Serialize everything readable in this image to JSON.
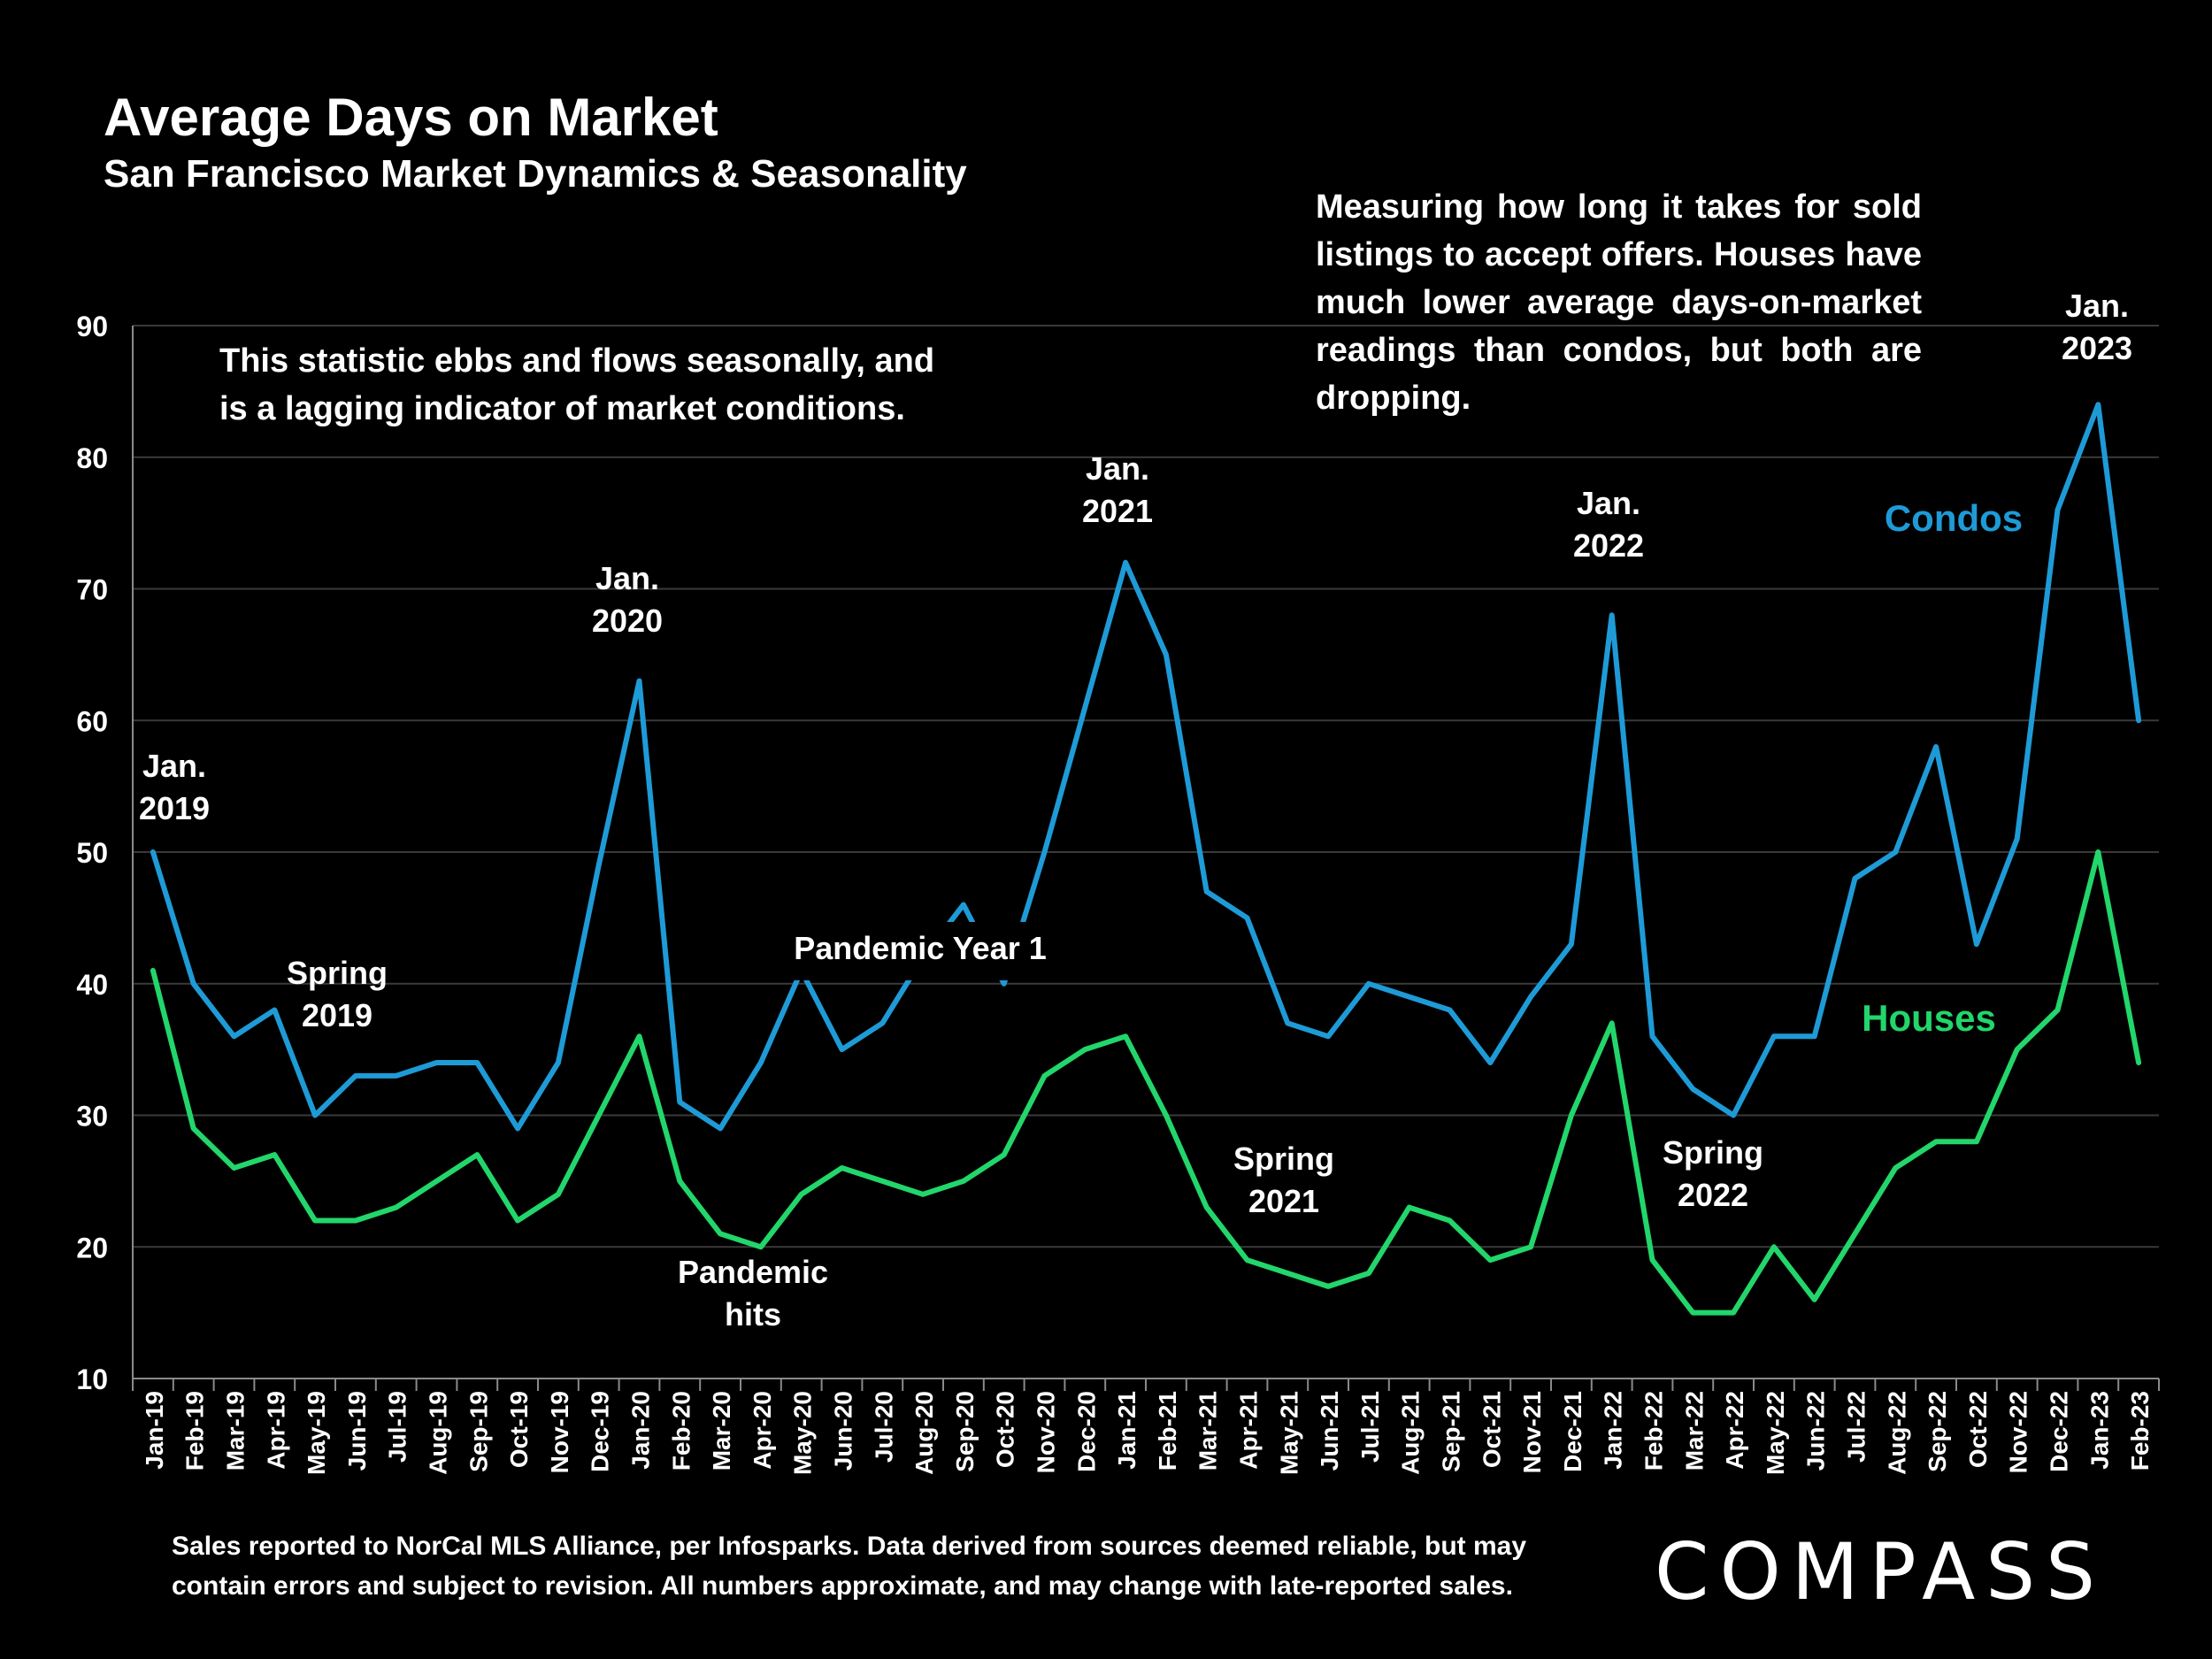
{
  "header": {
    "title": "Average Days on Market",
    "subtitle": "San Francisco Market Dynamics & Seasonality"
  },
  "notes": {
    "left": "This statistic ebbs and flows seasonally, and is a lagging indicator of market conditions.",
    "right": "Measuring how long it takes for sold listings to accept offers. Houses have much lower average days-on-market readings than condos, but both are dropping."
  },
  "footer": {
    "source": "Sales reported to NorCal MLS Alliance, per Infosparks. Data derived from sources deemed reliable, but may contain errors and subject to revision. All numbers approximate, and may change with late-reported sales.",
    "logo": "COMPASS"
  },
  "colors": {
    "background": "#000000",
    "condos": "#1E9BD7",
    "houses": "#22D66B",
    "grid": "#3a3a3a",
    "text": "#FFFFFF"
  },
  "chart_data": {
    "type": "line",
    "ylim": [
      10,
      90
    ],
    "yticks": [
      10,
      20,
      30,
      40,
      50,
      60,
      70,
      80,
      90
    ],
    "grid": true,
    "categories": [
      "Jan-19",
      "Feb-19",
      "Mar-19",
      "Apr-19",
      "May-19",
      "Jun-19",
      "Jul-19",
      "Aug-19",
      "Sep-19",
      "Oct-19",
      "Nov-19",
      "Dec-19",
      "Jan-20",
      "Feb-20",
      "Mar-20",
      "Apr-20",
      "May-20",
      "Jun-20",
      "Jul-20",
      "Aug-20",
      "Sep-20",
      "Oct-20",
      "Nov-20",
      "Dec-20",
      "Jan-21",
      "Feb-21",
      "Mar-21",
      "Apr-21",
      "May-21",
      "Jun-21",
      "Jul-21",
      "Aug-21",
      "Sep-21",
      "Oct-21",
      "Nov-21",
      "Dec-21",
      "Jan-22",
      "Feb-22",
      "Mar-22",
      "Apr-22",
      "May-22",
      "Jun-22",
      "Jul-22",
      "Aug-22",
      "Sep-22",
      "Oct-22",
      "Nov-22",
      "Dec-22",
      "Jan-23",
      "Feb-23"
    ],
    "series": [
      {
        "name": "Condos",
        "color": "#1E9BD7",
        "values": [
          50,
          40,
          36,
          38,
          30,
          33,
          33,
          34,
          34,
          29,
          34,
          49,
          63,
          31,
          29,
          34,
          41,
          35,
          37,
          42,
          46,
          40,
          50,
          61,
          72,
          65,
          47,
          45,
          37,
          36,
          40,
          39,
          38,
          34,
          39,
          43,
          68,
          36,
          32,
          30,
          36,
          36,
          48,
          50,
          58,
          43,
          51,
          76,
          84,
          60
        ]
      },
      {
        "name": "Houses",
        "color": "#22D66B",
        "values": [
          41,
          29,
          26,
          27,
          22,
          22,
          23,
          25,
          27,
          22,
          24,
          30,
          36,
          25,
          21,
          20,
          24,
          26,
          25,
          24,
          25,
          27,
          33,
          35,
          36,
          30,
          23,
          19,
          18,
          17,
          18,
          23,
          22,
          19,
          20,
          30,
          37,
          19,
          15,
          15,
          20,
          16,
          21,
          26,
          28,
          28,
          35,
          38,
          50,
          34
        ]
      }
    ],
    "annotations": [
      {
        "lines": [
          "Jan.",
          "2019"
        ],
        "index": 1
      },
      {
        "lines": [
          "Spring",
          "2019"
        ],
        "index": 5
      },
      {
        "lines": [
          "Jan.",
          "2020"
        ],
        "index": 12
      },
      {
        "lines": [
          "Pandemic",
          "hits"
        ],
        "index": 15
      },
      {
        "lines": [
          "Pandemic Year 1"
        ],
        "index": 20
      },
      {
        "lines": [
          "Jan.",
          "2021"
        ],
        "index": 24
      },
      {
        "lines": [
          "Spring",
          "2021"
        ],
        "index": 28
      },
      {
        "lines": [
          "Jan.",
          "2022"
        ],
        "index": 36
      },
      {
        "lines": [
          "Spring",
          "2022"
        ],
        "index": 38
      },
      {
        "lines": [
          "Jan.",
          "2023"
        ],
        "index": 48
      }
    ],
    "series_labels": [
      "Condos",
      "Houses"
    ]
  }
}
